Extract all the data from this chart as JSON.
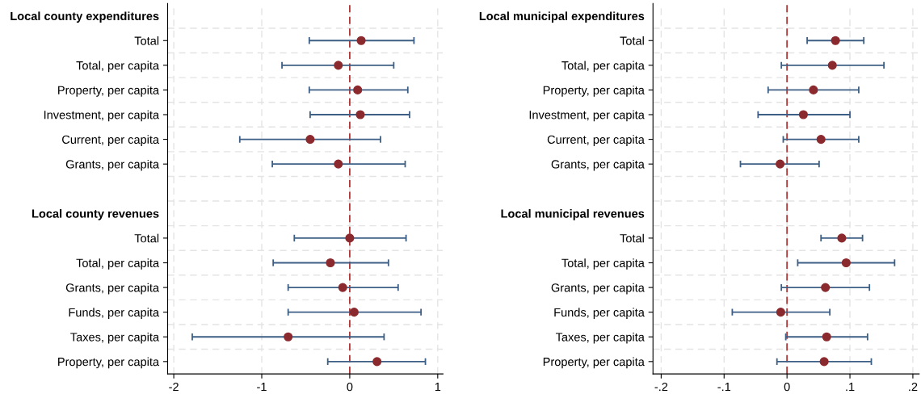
{
  "chart_data": [
    {
      "type": "scatter",
      "orientation": "horizontal",
      "categories": [
        "Local county expenditures",
        "Total",
        "Total, per capita",
        "Property, per capita",
        "Investment, per capita",
        "Current, per capita",
        "Grants, per capita",
        null,
        "Local county revenues",
        "Total",
        "Total, per capita",
        "Grants, per capita",
        "Funds, per capita",
        "Taxes, per capita",
        "Property, per capita"
      ],
      "series": [
        {
          "color": "#3d5f85",
          "colors": [
            "#8b2a2e",
            "#8b2a2e",
            "#8b2a2e",
            "#8b2a2e",
            "#8b2a2e",
            "#8b2a2e",
            "#8b2a2e",
            "#8b2a2e",
            "#8b2a2e",
            "#8b2a2e",
            "#8b2a2e",
            "#8b2a2e",
            "#8b2a2e",
            "#8b2a2e",
            "#8b2a2e"
          ],
          "values": [
            null,
            0.13,
            -0.13,
            0.09,
            0.12,
            -0.45,
            -0.13,
            null,
            null,
            0.0,
            -0.22,
            -0.08,
            0.05,
            -0.7,
            0.31
          ],
          "errors": [
            null,
            [
              -0.46,
              0.73
            ],
            [
              -0.77,
              0.5
            ],
            [
              -0.46,
              0.66
            ],
            [
              -0.45,
              0.68
            ],
            [
              -1.25,
              0.35
            ],
            [
              -0.88,
              0.63
            ],
            null,
            null,
            [
              -0.63,
              0.64
            ],
            [
              -0.87,
              0.44
            ],
            [
              -0.7,
              0.55
            ],
            [
              -0.7,
              0.81
            ],
            [
              -1.79,
              0.39
            ],
            [
              -0.25,
              0.86
            ]
          ]
        }
      ],
      "xlim": [
        -2.07,
        1.06
      ],
      "xticks": [
        -2,
        -1,
        0,
        1
      ],
      "grid": true,
      "marker": "circle",
      "ref_lines": [
        {
          "axis": "x",
          "value": 0,
          "color": "#b03a3a",
          "line_style": "dashed"
        }
      ]
    },
    {
      "type": "scatter",
      "orientation": "horizontal",
      "categories": [
        "Local municipal expenditures",
        "Total",
        "Total, per capita",
        "Property, per capita",
        "Investment, per capita",
        "Current, per capita",
        "Grants, per capita",
        null,
        "Local municipal revenues",
        "Total",
        "Total, per capita",
        "Grants, per capita",
        "Funds, per capita",
        "Taxes, per capita",
        "Property, per capita"
      ],
      "series": [
        {
          "color": "#3d5f85",
          "colors": [
            "#8b2a2e",
            "#8b2a2e",
            "#8b2a2e",
            "#8b2a2e",
            "#8b2a2e",
            "#8b2a2e",
            "#8b2a2e",
            "#8b2a2e",
            "#8b2a2e",
            "#8b2a2e",
            "#8b2a2e",
            "#8b2a2e",
            "#8b2a2e",
            "#8b2a2e",
            "#8b2a2e"
          ],
          "values": [
            null,
            0.077,
            0.072,
            0.042,
            0.026,
            0.054,
            -0.011,
            null,
            null,
            0.087,
            0.094,
            0.061,
            -0.01,
            0.063,
            0.059
          ],
          "errors": [
            null,
            [
              0.032,
              0.122
            ],
            [
              -0.009,
              0.154
            ],
            [
              -0.03,
              0.114
            ],
            [
              -0.046,
              0.1
            ],
            [
              -0.006,
              0.114
            ],
            [
              -0.074,
              0.051
            ],
            null,
            null,
            [
              0.054,
              0.12
            ],
            [
              0.017,
              0.171
            ],
            [
              -0.009,
              0.131
            ],
            [
              -0.087,
              0.068
            ],
            [
              -0.002,
              0.128
            ],
            [
              -0.016,
              0.134
            ]
          ]
        }
      ],
      "xlim": [
        -0.213,
        0.21
      ],
      "xticks": [
        {
          "value": -0.2,
          "label": "-.2"
        },
        {
          "value": -0.1,
          "label": "-.1"
        },
        0,
        {
          "value": 0.1,
          "label": ".1"
        },
        {
          "value": 0.2,
          "label": ".2"
        }
      ],
      "grid": true,
      "marker": "circle",
      "ref_lines": [
        {
          "axis": "x",
          "value": 0,
          "color": "#b03a3a",
          "line_style": "dashed"
        }
      ]
    }
  ]
}
